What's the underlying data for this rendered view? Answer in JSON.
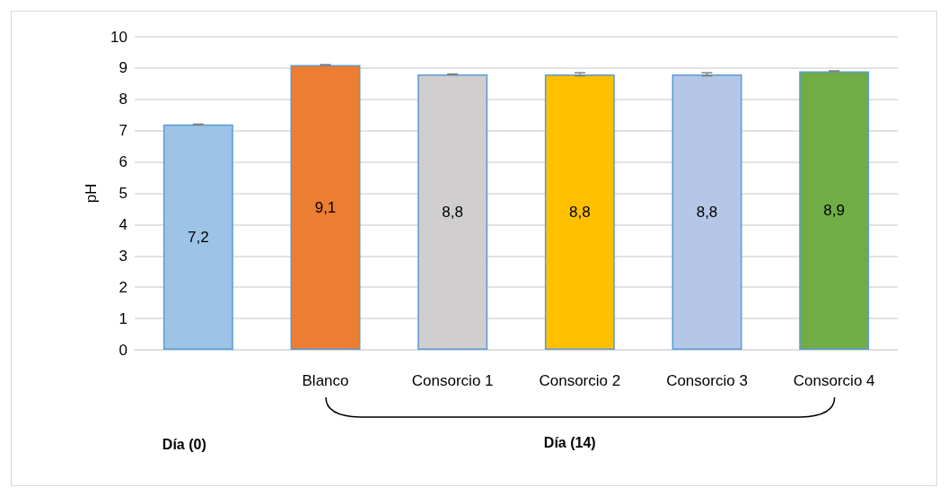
{
  "chart_data": {
    "type": "bar",
    "ylabel": "pH",
    "categories": [
      null,
      "Blanco",
      "Consorcio 1",
      "Consorcio 2",
      "Consorcio 3",
      "Consorcio 4"
    ],
    "values": [
      7.2,
      9.1,
      8.8,
      8.8,
      8.8,
      8.9
    ],
    "value_labels": [
      "7,2",
      "9,1",
      "8,8",
      "8,8",
      "8,8",
      "8,9"
    ],
    "errors": [
      0.01,
      0.01,
      0.01,
      0.05,
      0.05,
      0.01
    ],
    "colors": [
      "#9dc3e6",
      "#ed7d31",
      "#d0cece",
      "#ffc000",
      "#b4c7e7",
      "#70ad47"
    ],
    "ylim": [
      0,
      10
    ],
    "yticks": [
      0,
      1,
      2,
      3,
      4,
      5,
      6,
      7,
      8,
      9,
      10
    ],
    "grid": "y",
    "annotations": [
      "Día (0)",
      "Día (14)"
    ]
  }
}
